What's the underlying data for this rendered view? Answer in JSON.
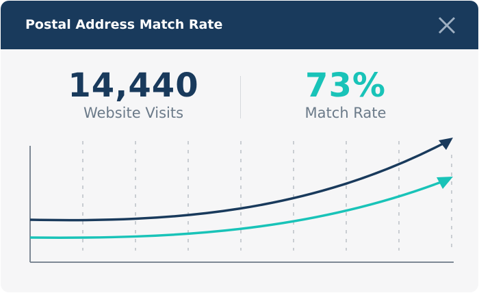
{
  "header": {
    "title": "Postal Address Match Rate"
  },
  "stats": [
    {
      "value": "14,440",
      "label": "Website Visits"
    },
    {
      "value": "73%",
      "label": "Match Rate"
    }
  ]
}
